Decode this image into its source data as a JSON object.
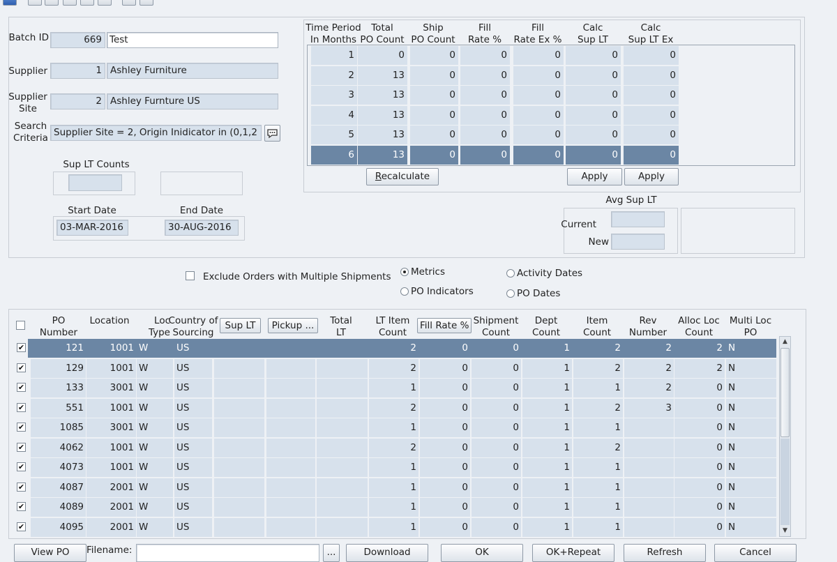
{
  "toolbar": {
    "icons": [
      "back-icon",
      "refresh-icon",
      "edit-icon",
      "copy-icon",
      "print-icon",
      "view-icon",
      "sort-icon",
      "window-icon"
    ]
  },
  "form": {
    "batch_label": "Batch ID",
    "batch_id": "669",
    "batch_desc": "Test",
    "supplier_label": "Supplier",
    "supplier_id": "1",
    "supplier_name": "Ashley Furniture",
    "site_label_1": "Supplier",
    "site_label_2": "Site",
    "site_id": "2",
    "site_name": "Ashley Furnture US",
    "search_label_1": "Search",
    "search_label_2": "Criteria",
    "search_value": "Supplier Site = 2, Origin Inidicator in (0,1,2",
    "sup_lt_counts_label": "Sup LT Counts",
    "start_date_label": "Start Date",
    "start_date": "03-MAR-2016",
    "end_date_label": "End Date",
    "end_date": "30-AUG-2016"
  },
  "metrics": {
    "headers": [
      [
        "Time Period",
        "In Months"
      ],
      [
        "Total",
        "PO Count"
      ],
      [
        "Ship",
        "PO Count"
      ],
      [
        "Fill",
        "Rate %"
      ],
      [
        "Fill",
        "Rate Ex %"
      ],
      [
        "Calc",
        "Sup LT"
      ],
      [
        "Calc",
        "Sup LT Ex"
      ]
    ],
    "rows": [
      [
        "1",
        "0",
        "0",
        "0",
        "0",
        "0",
        "0"
      ],
      [
        "2",
        "13",
        "0",
        "0",
        "0",
        "0",
        "0"
      ],
      [
        "3",
        "13",
        "0",
        "0",
        "0",
        "0",
        "0"
      ],
      [
        "4",
        "13",
        "0",
        "0",
        "0",
        "0",
        "0"
      ],
      [
        "5",
        "13",
        "0",
        "0",
        "0",
        "0",
        "0"
      ],
      [
        "6",
        "13",
        "0",
        "0",
        "0",
        "0",
        "0"
      ]
    ],
    "selected_row": 5,
    "recalculate_label": "Recalculate",
    "apply_label_1": "Apply",
    "apply_label_2": "Apply"
  },
  "avg": {
    "title": "Avg Sup LT",
    "current_label": "Current",
    "new_label": "New"
  },
  "options": {
    "exclude_label": "Exclude Orders with Multiple Shipments",
    "radio_metrics": "Metrics",
    "radio_po_indicators": "PO Indicators",
    "radio_activity_dates": "Activity Dates",
    "radio_po_dates": "PO Dates"
  },
  "grid": {
    "headers": {
      "po_number": [
        "PO",
        "Number"
      ],
      "location": [
        "",
        "Location"
      ],
      "loc_type": [
        "Loc",
        "Type"
      ],
      "country": [
        "Country of",
        "Sourcing"
      ],
      "sup_lt": "Sup LT",
      "pickup": "Pickup ...",
      "total_lt": [
        "Total",
        "LT"
      ],
      "lt_item_count": [
        "LT Item",
        "Count"
      ],
      "fill_rate": "Fill Rate %",
      "shipment_count": [
        "Shipment",
        "Count"
      ],
      "dept_count": [
        "Dept",
        "Count"
      ],
      "item_count": [
        "Item",
        "Count"
      ],
      "rev_number": [
        "Rev",
        "Number"
      ],
      "alloc_loc_count": [
        "Alloc Loc",
        "Count"
      ],
      "multi_loc_po": [
        "Multi Loc",
        "PO"
      ]
    },
    "rows": [
      {
        "po": "121",
        "loc": "1001",
        "type": "W",
        "country": "US",
        "sup_lt": "",
        "pickup": "",
        "total_lt": "",
        "lt_item": "2",
        "fill": "0",
        "ship": "0",
        "dept": "1",
        "item": "2",
        "rev": "2",
        "alloc": "2",
        "multi": "N"
      },
      {
        "po": "129",
        "loc": "1001",
        "type": "W",
        "country": "US",
        "sup_lt": "",
        "pickup": "",
        "total_lt": "",
        "lt_item": "2",
        "fill": "0",
        "ship": "0",
        "dept": "1",
        "item": "2",
        "rev": "2",
        "alloc": "2",
        "multi": "N"
      },
      {
        "po": "133",
        "loc": "3001",
        "type": "W",
        "country": "US",
        "sup_lt": "",
        "pickup": "",
        "total_lt": "",
        "lt_item": "1",
        "fill": "0",
        "ship": "0",
        "dept": "1",
        "item": "1",
        "rev": "2",
        "alloc": "0",
        "multi": "N"
      },
      {
        "po": "551",
        "loc": "1001",
        "type": "W",
        "country": "US",
        "sup_lt": "",
        "pickup": "",
        "total_lt": "",
        "lt_item": "2",
        "fill": "0",
        "ship": "0",
        "dept": "1",
        "item": "2",
        "rev": "3",
        "alloc": "0",
        "multi": "N"
      },
      {
        "po": "1085",
        "loc": "3001",
        "type": "W",
        "country": "US",
        "sup_lt": "",
        "pickup": "",
        "total_lt": "",
        "lt_item": "1",
        "fill": "0",
        "ship": "0",
        "dept": "1",
        "item": "1",
        "rev": "",
        "alloc": "0",
        "multi": "N"
      },
      {
        "po": "4062",
        "loc": "1001",
        "type": "W",
        "country": "US",
        "sup_lt": "",
        "pickup": "",
        "total_lt": "",
        "lt_item": "2",
        "fill": "0",
        "ship": "0",
        "dept": "1",
        "item": "2",
        "rev": "",
        "alloc": "0",
        "multi": "N"
      },
      {
        "po": "4073",
        "loc": "1001",
        "type": "W",
        "country": "US",
        "sup_lt": "",
        "pickup": "",
        "total_lt": "",
        "lt_item": "1",
        "fill": "0",
        "ship": "0",
        "dept": "1",
        "item": "1",
        "rev": "",
        "alloc": "0",
        "multi": "N"
      },
      {
        "po": "4087",
        "loc": "2001",
        "type": "W",
        "country": "US",
        "sup_lt": "",
        "pickup": "",
        "total_lt": "",
        "lt_item": "1",
        "fill": "0",
        "ship": "0",
        "dept": "1",
        "item": "1",
        "rev": "",
        "alloc": "0",
        "multi": "N"
      },
      {
        "po": "4089",
        "loc": "2001",
        "type": "W",
        "country": "US",
        "sup_lt": "",
        "pickup": "",
        "total_lt": "",
        "lt_item": "1",
        "fill": "0",
        "ship": "0",
        "dept": "1",
        "item": "1",
        "rev": "",
        "alloc": "0",
        "multi": "N"
      },
      {
        "po": "4095",
        "loc": "2001",
        "type": "W",
        "country": "US",
        "sup_lt": "",
        "pickup": "",
        "total_lt": "",
        "lt_item": "1",
        "fill": "0",
        "ship": "0",
        "dept": "1",
        "item": "1",
        "rev": "",
        "alloc": "0",
        "multi": "N"
      }
    ],
    "selected_row": 0
  },
  "bottom": {
    "view_po": "View PO",
    "filename_label": "Filename:",
    "filename_value": "",
    "browse": "...",
    "download": "Download",
    "ok": "OK",
    "ok_repeat": "OK+Repeat",
    "refresh": "Refresh",
    "cancel": "Cancel"
  },
  "colors": {
    "background": "#eef1f5",
    "field_readonly": "#d7e1ec",
    "selection": "#6b86a4"
  }
}
